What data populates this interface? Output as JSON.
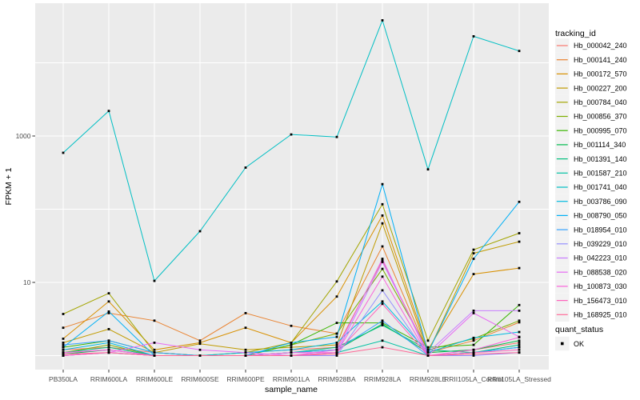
{
  "chart_data": {
    "type": "line",
    "title": "",
    "xlabel": "sample_name",
    "ylabel": "FPKM + 1",
    "y_scale": "log10",
    "grid": true,
    "panel_bg": "#EBEBEB",
    "gridline_color": "#FFFFFF",
    "point_color": "#000000",
    "tick_color": "#333333",
    "tick_label_color": "#4D4D4D",
    "legend_key_bg": "#F2F2F2",
    "y_ticks": [
      {
        "label": "10",
        "value": 10
      },
      {
        "label": "1000",
        "value": 1000
      }
    ],
    "y_gridline_values": [
      1,
      10,
      100,
      1000,
      10000
    ],
    "ylim_log10": [
      -0.25,
      4.82
    ],
    "categories": [
      "PB350LA",
      "RRIM600LA",
      "RRIM600LE",
      "RRIM600SE",
      "RRIM600PE",
      "RRIM901LA",
      "RRIM928BA",
      "RRIM928LA",
      "RRIM928LE",
      "RRII105LA_Control",
      "RRII105LA_Stressed"
    ],
    "legend": {
      "title": "tracking_id"
    },
    "legend2": {
      "title": "quant_status",
      "items": [
        {
          "label": "OK",
          "marker": "black-square"
        }
      ]
    },
    "series": [
      {
        "name": "Hb_000042_240",
        "color": "#F8766D",
        "values": [
          1.2,
          1.3,
          1.1,
          1.0,
          1.1,
          1.2,
          1.3,
          20,
          1.1,
          1.2,
          1.5
        ]
      },
      {
        "name": "Hb_000141_240",
        "color": "#EA8331",
        "values": [
          2.4,
          3.8,
          3.0,
          1.6,
          3.8,
          2.55,
          2.0,
          31,
          1.1,
          1.6,
          2.85
        ]
      },
      {
        "name": "Hb_000172_570",
        "color": "#D89000",
        "values": [
          1.7,
          5.5,
          1.2,
          1.5,
          2.4,
          1.5,
          6.4,
          82,
          1.2,
          13,
          15.7
        ]
      },
      {
        "name": "Hb_000227_200",
        "color": "#C09B00",
        "values": [
          1.5,
          2.3,
          1.1,
          1.45,
          1.2,
          1.3,
          1.4,
          64,
          1.1,
          25,
          36
        ]
      },
      {
        "name": "Hb_000784_040",
        "color": "#A3A500",
        "values": [
          3.7,
          7.1,
          1.1,
          1.0,
          1.1,
          1.5,
          10.3,
          117,
          1.6,
          28,
          47
        ]
      },
      {
        "name": "Hb_000856_370",
        "color": "#7CAE00",
        "values": [
          1.1,
          1.4,
          1.0,
          1.0,
          1.0,
          1.4,
          2.0,
          15.3,
          1.2,
          1.7,
          3.0
        ]
      },
      {
        "name": "Hb_000995_070",
        "color": "#39B600",
        "values": [
          1.3,
          1.6,
          1.1,
          1.0,
          1.0,
          1.4,
          2.8,
          2.8,
          1.3,
          1.4,
          4.9
        ]
      },
      {
        "name": "Hb_001114_340",
        "color": "#00BB4E",
        "values": [
          1.05,
          1.2,
          1.0,
          1.0,
          1.0,
          1.1,
          1.2,
          2.7,
          1.1,
          1.2,
          1.6
        ]
      },
      {
        "name": "Hb_001391_140",
        "color": "#00BF7D",
        "values": [
          1.1,
          1.3,
          1.0,
          1.0,
          1.0,
          1.1,
          1.3,
          2.6,
          1.2,
          1.1,
          1.4
        ]
      },
      {
        "name": "Hb_001587_210",
        "color": "#00C1A3",
        "values": [
          1.0,
          1.1,
          1.0,
          1.0,
          1.0,
          1.0,
          1.1,
          1.6,
          1.0,
          1.1,
          1.3
        ]
      },
      {
        "name": "Hb_001741_040",
        "color": "#00BFC4",
        "values": [
          590,
          2200,
          10.5,
          50,
          370,
          1050,
          970,
          38000,
          350,
          23000,
          14500
        ]
      },
      {
        "name": "Hb_003786_090",
        "color": "#00BAE0",
        "values": [
          1.2,
          1.5,
          1.0,
          1.0,
          1.1,
          1.2,
          1.5,
          5.5,
          1.1,
          1.75,
          2.1
        ]
      },
      {
        "name": "Hb_008790_050",
        "color": "#00B0F6",
        "values": [
          1.3,
          4.0,
          1.0,
          1.0,
          1.0,
          1.5,
          1.8,
          220,
          1.1,
          21,
          126
        ]
      },
      {
        "name": "Hb_018954_010",
        "color": "#35A2FF",
        "values": [
          1.4,
          1.6,
          1.1,
          1.0,
          1.0,
          1.1,
          1.2,
          3.0,
          1.0,
          1.1,
          1.3
        ]
      },
      {
        "name": "Hb_039229_010",
        "color": "#9590FF",
        "values": [
          1.0,
          1.1,
          1.0,
          1.0,
          1.0,
          1.0,
          1.0,
          7.8,
          1.0,
          1.0,
          1.1
        ]
      },
      {
        "name": "Hb_042223_010",
        "color": "#C77CFF",
        "values": [
          1.1,
          1.2,
          1.0,
          1.0,
          1.0,
          1.0,
          1.1,
          19,
          1.1,
          4.1,
          4.1
        ]
      },
      {
        "name": "Hb_088538_020",
        "color": "#E76BF3",
        "values": [
          1.0,
          1.1,
          1.5,
          1.2,
          1.1,
          1.0,
          1.2,
          21,
          1.0,
          3.8,
          1.8
        ]
      },
      {
        "name": "Hb_100873_030",
        "color": "#FA62DB",
        "values": [
          1.1,
          1.2,
          1.0,
          1.0,
          1.0,
          1.1,
          1.1,
          12,
          1.0,
          1.2,
          1.78
        ]
      },
      {
        "name": "Hb_156473_010",
        "color": "#FF62BC",
        "values": [
          1.0,
          1.1,
          1.0,
          1.0,
          1.0,
          1.0,
          1.1,
          5.1,
          1.0,
          1.1,
          1.2
        ]
      },
      {
        "name": "Hb_168925_010",
        "color": "#FF6A98",
        "values": [
          1.05,
          1.1,
          1.0,
          1.0,
          1.0,
          1.0,
          1.05,
          1.3,
          1.0,
          1.05,
          1.1
        ]
      }
    ]
  }
}
